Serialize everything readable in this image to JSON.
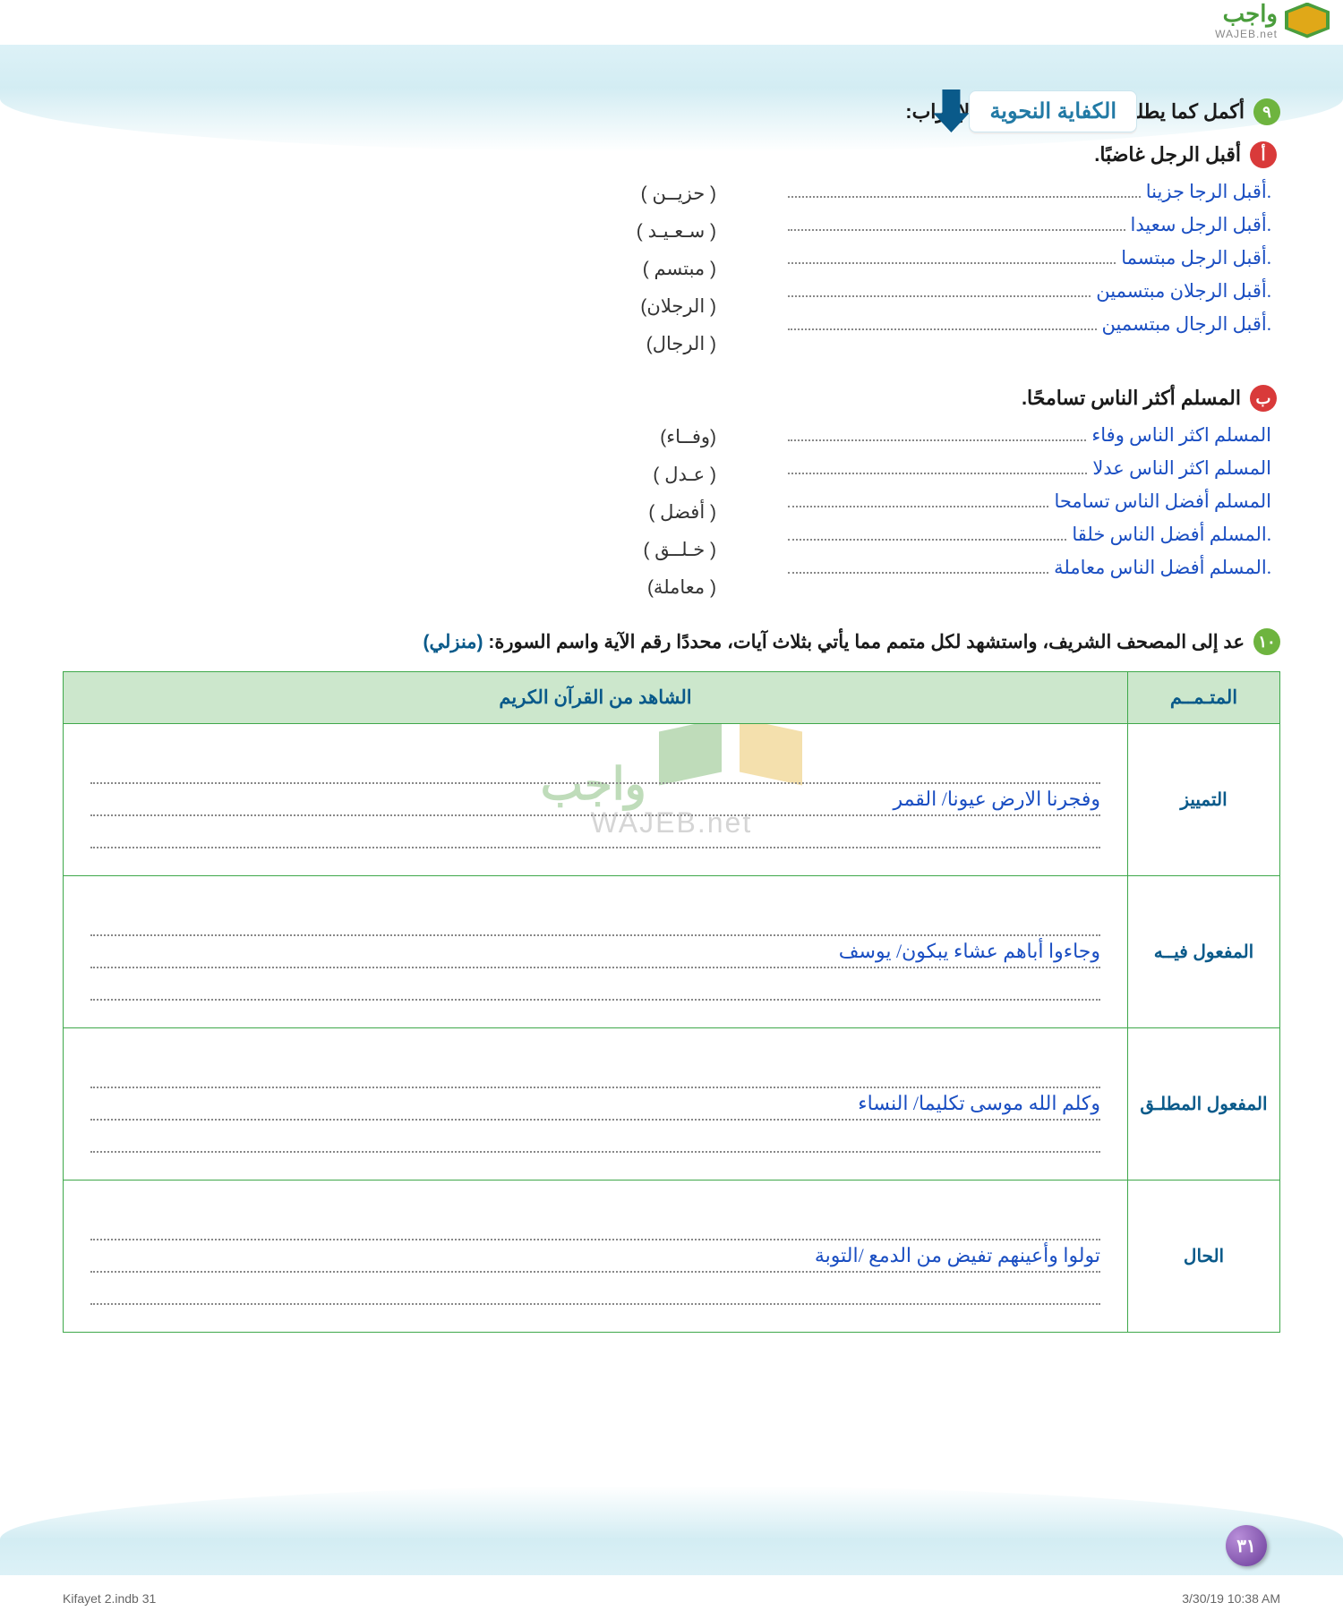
{
  "logo": {
    "ar": "واجب",
    "en": "WAJEB.net"
  },
  "title_tab": "الكفاية النحوية",
  "q9": {
    "num": "٩",
    "text": "أكمل كما يطلب منك، وميّز علامة الإعراب:",
    "a_label": "أ",
    "a_prompt": "أقبل الرجل غاضبًا.",
    "a_answers": [
      ".أقبل الرجا جزينا",
      ".أقبل الرجل سعيدا",
      ".أقبل الرجل مبتسما",
      ".أقبل الرجلان مبتسمين",
      ".أقبل الرجال مبتسمين"
    ],
    "a_hints": [
      "( حزيــن )",
      "( سـعـيـد )",
      "( مبتسم )",
      "( الرجلان)",
      "( الرجال)"
    ],
    "b_label": "ب",
    "b_prompt": "المسلم  أكثر الناس تسامحًا.",
    "b_answers": [
      "المسلم اكثر الناس وفاء",
      "المسلم اكثر الناس عدلا",
      "المسلم أفضل الناس تسامحا",
      ".المسلم أفضل الناس خلقا",
      ".المسلم أفضل الناس معاملة"
    ],
    "b_hints": [
      "(وفــاء)",
      "(  عـدل )",
      "( أفضل )",
      "( خـلــق )",
      "( معاملة)"
    ]
  },
  "q10": {
    "num": "١٠",
    "text": "عد إلى المصحف الشريف، واستشهد لكل متمم مما يأتي بثلاث آيات، محددًا رقم الآية واسم السورة:",
    "tag": "(منزلي)",
    "col1": "المتـمــم",
    "col2": "الشاهد من القرآن الكريم",
    "rows": [
      {
        "label": "التمييز",
        "answer": "وفجرنا الارض عيونا/  القمر"
      },
      {
        "label": "المفعول فيــه",
        "answer": "وجاءوا أباهم عشاء يبكون/  يوسف"
      },
      {
        "label": "المفعول المطلـق",
        "answer": "وكلم الله موسى تكليما/  النساء"
      },
      {
        "label": "الحال",
        "answer": "تولوا وأعينهم تفيض من الدمع  /التوبة"
      }
    ]
  },
  "page_number": "٣١",
  "footer": {
    "left": "Kifayet 2.indb   31",
    "right": "3/30/19   10:38 AM"
  },
  "watermark": {
    "ar": "واجب",
    "en": "WAJEB.net"
  }
}
